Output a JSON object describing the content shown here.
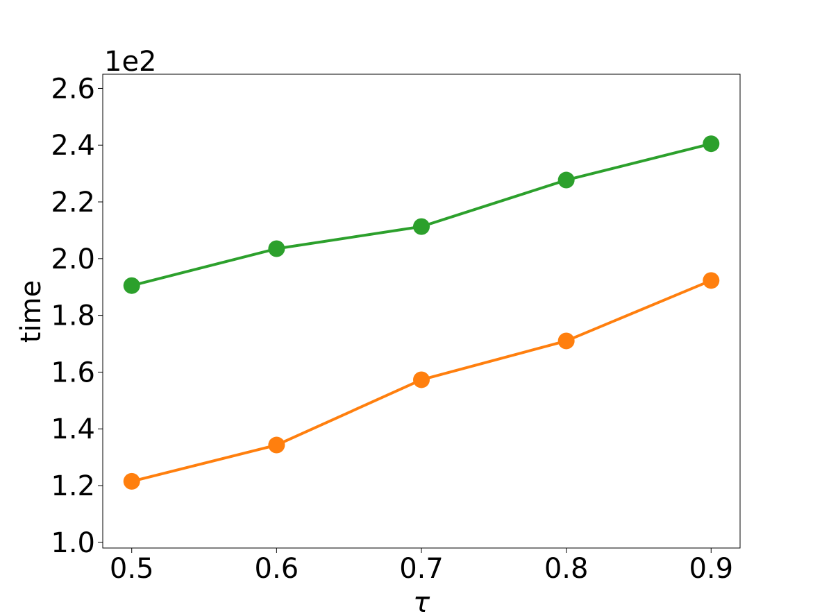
{
  "chart_data": {
    "type": "line",
    "xlabel": "τ",
    "ylabel": "time",
    "y_offset_label": "1e2",
    "x": [
      0.5,
      0.6,
      0.7,
      0.8,
      0.9
    ],
    "x_ticks": [
      "0.5",
      "0.6",
      "0.7",
      "0.8",
      "0.9"
    ],
    "y_ticks": [
      {
        "value": 1.0,
        "label": "1.0"
      },
      {
        "value": 1.2,
        "label": "1.2"
      },
      {
        "value": 1.4,
        "label": "1.4"
      },
      {
        "value": 1.6,
        "label": "1.6"
      },
      {
        "value": 1.8,
        "label": "1.8"
      },
      {
        "value": 2.0,
        "label": "2.0"
      },
      {
        "value": 2.2,
        "label": "2.2"
      },
      {
        "value": 2.4,
        "label": "2.4"
      },
      {
        "value": 2.6,
        "label": "2.6"
      }
    ],
    "xlim": [
      0.48,
      0.92
    ],
    "ylim": [
      0.98,
      2.65
    ],
    "grid": false,
    "legend": "none",
    "series": [
      {
        "color": "#2ca02c",
        "values": [
          1.905,
          2.035,
          2.113,
          2.277,
          2.405
        ]
      },
      {
        "color": "#ff7f0e",
        "values": [
          1.215,
          1.343,
          1.573,
          1.71,
          1.923
        ]
      }
    ]
  }
}
